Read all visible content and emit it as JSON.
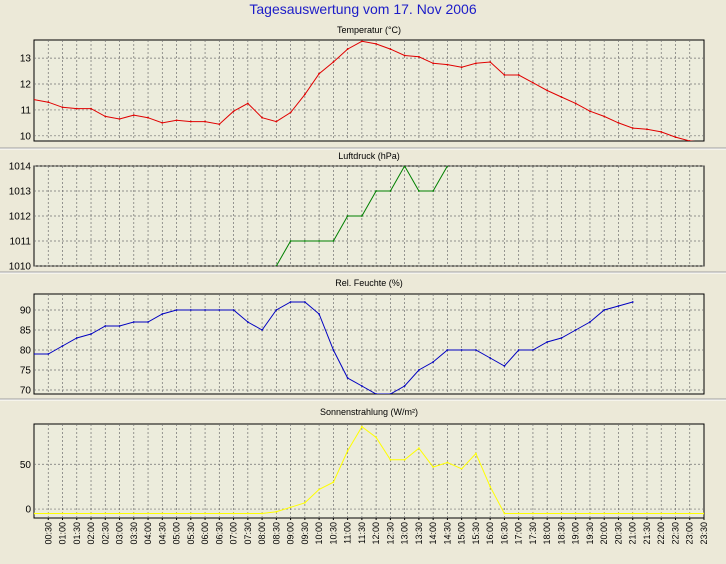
{
  "title": "Tagesauswertung vom 17. Nov 2006",
  "x_labels": [
    "00:30",
    "01:00",
    "01:30",
    "02:00",
    "02:30",
    "03:00",
    "03:30",
    "04:00",
    "04:30",
    "05:00",
    "05:30",
    "06:00",
    "06:30",
    "07:00",
    "07:30",
    "08:00",
    "08:30",
    "09:00",
    "09:30",
    "10:00",
    "10:30",
    "11:00",
    "11:30",
    "12:00",
    "12:30",
    "13:00",
    "13:30",
    "14:00",
    "14:30",
    "15:00",
    "15:30",
    "16:00",
    "16:30",
    "17:00",
    "17:30",
    "18:00",
    "18:30",
    "19:00",
    "19:30",
    "20:00",
    "20:30",
    "21:00",
    "21:30",
    "22:00",
    "22:30",
    "23:00",
    "23:30"
  ],
  "chart_data": [
    {
      "type": "line",
      "title": "Temperatur (°C)",
      "color": "#e00000",
      "ylim": [
        9.8,
        13.7
      ],
      "yticks": [
        10,
        11,
        12,
        13
      ],
      "x": [
        "00:00",
        "00:30",
        "01:00",
        "01:30",
        "02:00",
        "02:30",
        "03:00",
        "03:30",
        "04:00",
        "04:30",
        "05:00",
        "05:30",
        "06:00",
        "06:30",
        "07:00",
        "07:30",
        "08:00",
        "08:30",
        "09:00",
        "09:30",
        "10:00",
        "10:30",
        "11:00",
        "11:30",
        "12:00",
        "12:30",
        "13:00",
        "13:30",
        "14:00",
        "14:30",
        "15:00",
        "15:30",
        "16:00",
        "16:30",
        "17:00",
        "17:30",
        "18:00",
        "18:30",
        "19:00",
        "19:30",
        "20:00",
        "20:30",
        "21:00",
        "21:30",
        "22:00",
        "22:30",
        "23:00",
        "23:30"
      ],
      "values": [
        11.4,
        11.3,
        11.1,
        11.05,
        11.05,
        10.75,
        10.65,
        10.8,
        10.7,
        10.5,
        10.6,
        10.55,
        10.55,
        10.45,
        10.95,
        11.25,
        10.7,
        10.55,
        10.9,
        11.6,
        12.4,
        12.85,
        13.35,
        13.65,
        13.55,
        13.35,
        13.1,
        13.05,
        12.8,
        12.75,
        12.65,
        12.8,
        12.85,
        12.35,
        12.35,
        12.05,
        11.75,
        11.5,
        11.25,
        10.95,
        10.75,
        10.5,
        10.3,
        10.25,
        10.15,
        9.95,
        9.8,
        9.75
      ]
    },
    {
      "type": "line",
      "title": "Luftdruck (hPa)",
      "color": "#008000",
      "ylim": [
        1010,
        1014
      ],
      "yticks": [
        1010,
        1011,
        1012,
        1013,
        1014
      ],
      "x": [
        "08:30",
        "09:00",
        "09:30",
        "10:00",
        "10:30",
        "11:00",
        "11:30",
        "12:00",
        "12:30",
        "13:00",
        "13:30",
        "14:00",
        "14:30"
      ],
      "values": [
        1010,
        1011,
        1011,
        1011,
        1011,
        1012,
        1012,
        1013,
        1013,
        1014,
        1013,
        1013,
        1014
      ]
    },
    {
      "type": "line",
      "title": "Rel. Feuchte (%)",
      "color": "#0000c0",
      "ylim": [
        69,
        94
      ],
      "yticks": [
        70,
        75,
        80,
        85,
        90
      ],
      "x": [
        "00:00",
        "00:30",
        "01:00",
        "01:30",
        "02:00",
        "02:30",
        "03:00",
        "03:30",
        "04:00",
        "04:30",
        "05:00",
        "05:30",
        "06:00",
        "06:30",
        "07:00",
        "07:30",
        "08:00",
        "08:30",
        "09:00",
        "09:30",
        "10:00",
        "10:30",
        "11:00",
        "11:30",
        "12:00",
        "12:30",
        "13:00",
        "13:30",
        "14:00",
        "14:30",
        "15:00",
        "15:30",
        "16:00",
        "16:30",
        "17:00",
        "17:30",
        "18:00",
        "18:30",
        "19:00",
        "19:30",
        "20:00",
        "20:30",
        "21:00"
      ],
      "values": [
        79,
        79,
        81,
        83,
        84,
        86,
        86,
        87,
        87,
        89,
        90,
        90,
        90,
        90,
        90,
        87,
        85,
        90,
        92,
        92,
        89,
        80,
        73,
        71,
        69,
        69,
        71,
        75,
        77,
        80,
        80,
        80,
        78,
        76,
        80,
        80,
        82,
        83,
        85,
        87,
        90,
        91,
        92
      ]
    },
    {
      "type": "line",
      "title": "Sonnenstrahlung (W/m²)",
      "color": "#ffff00",
      "ylim": [
        -10,
        95
      ],
      "yticks": [
        0,
        50
      ],
      "x": [
        "00:00",
        "00:30",
        "01:00",
        "01:30",
        "02:00",
        "02:30",
        "03:00",
        "03:30",
        "04:00",
        "04:30",
        "05:00",
        "05:30",
        "06:00",
        "06:30",
        "07:00",
        "07:30",
        "08:00",
        "08:30",
        "09:00",
        "09:30",
        "10:00",
        "10:30",
        "11:00",
        "11:30",
        "12:00",
        "12:30",
        "13:00",
        "13:30",
        "14:00",
        "14:30",
        "15:00",
        "15:30",
        "16:00",
        "16:30",
        "17:00",
        "17:30",
        "18:00",
        "18:30",
        "19:00",
        "19:30",
        "20:00",
        "20:30",
        "21:00",
        "21:30",
        "22:00",
        "22:30",
        "23:00",
        "23:30"
      ],
      "values": [
        -5,
        -5,
        -5,
        -5,
        -5,
        -5,
        -5,
        -5,
        -5,
        -5,
        -5,
        -5,
        -5,
        -5,
        -5,
        -5,
        -5,
        -3,
        2,
        7,
        22,
        30,
        65,
        92,
        80,
        55,
        55,
        68,
        47,
        52,
        45,
        62,
        25,
        -5,
        -5,
        -5,
        -5,
        -5,
        -5,
        -5,
        -5,
        -5,
        -5,
        -5,
        -5,
        -5,
        -5,
        -5
      ]
    }
  ]
}
